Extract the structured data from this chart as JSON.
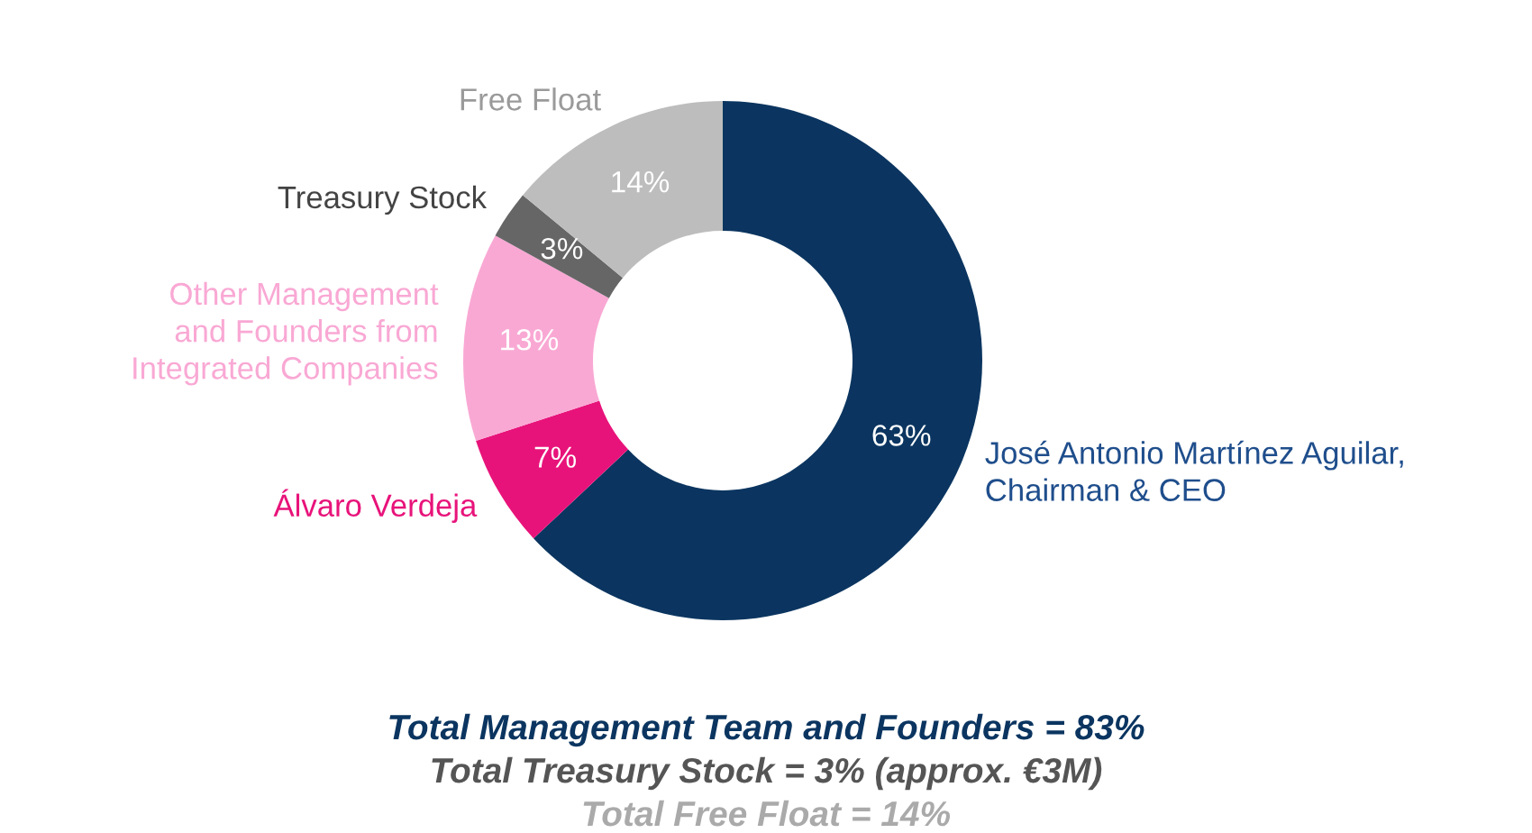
{
  "chart_data": {
    "type": "donut",
    "categories": [
      "José Antonio Martínez Aguilar,\nChairman & CEO",
      "Álvaro Verdeja",
      "Other Management\nand Founders from\nIntegrated Companies",
      "Treasury Stock",
      "Free Float"
    ],
    "values": [
      63,
      7,
      13,
      3,
      14
    ],
    "value_labels": [
      "63%",
      "7%",
      "13%",
      "3%",
      "14%"
    ],
    "colors": [
      "#0b3560",
      "#e8137a",
      "#f9a8d4",
      "#666666",
      "#bdbdbd"
    ],
    "legend": false,
    "annotations": [
      "Total Management Team and Founders = 83%",
      "Total Treasury Stock = 3% (approx. €3M)",
      "Total Free Float = 14%"
    ]
  }
}
